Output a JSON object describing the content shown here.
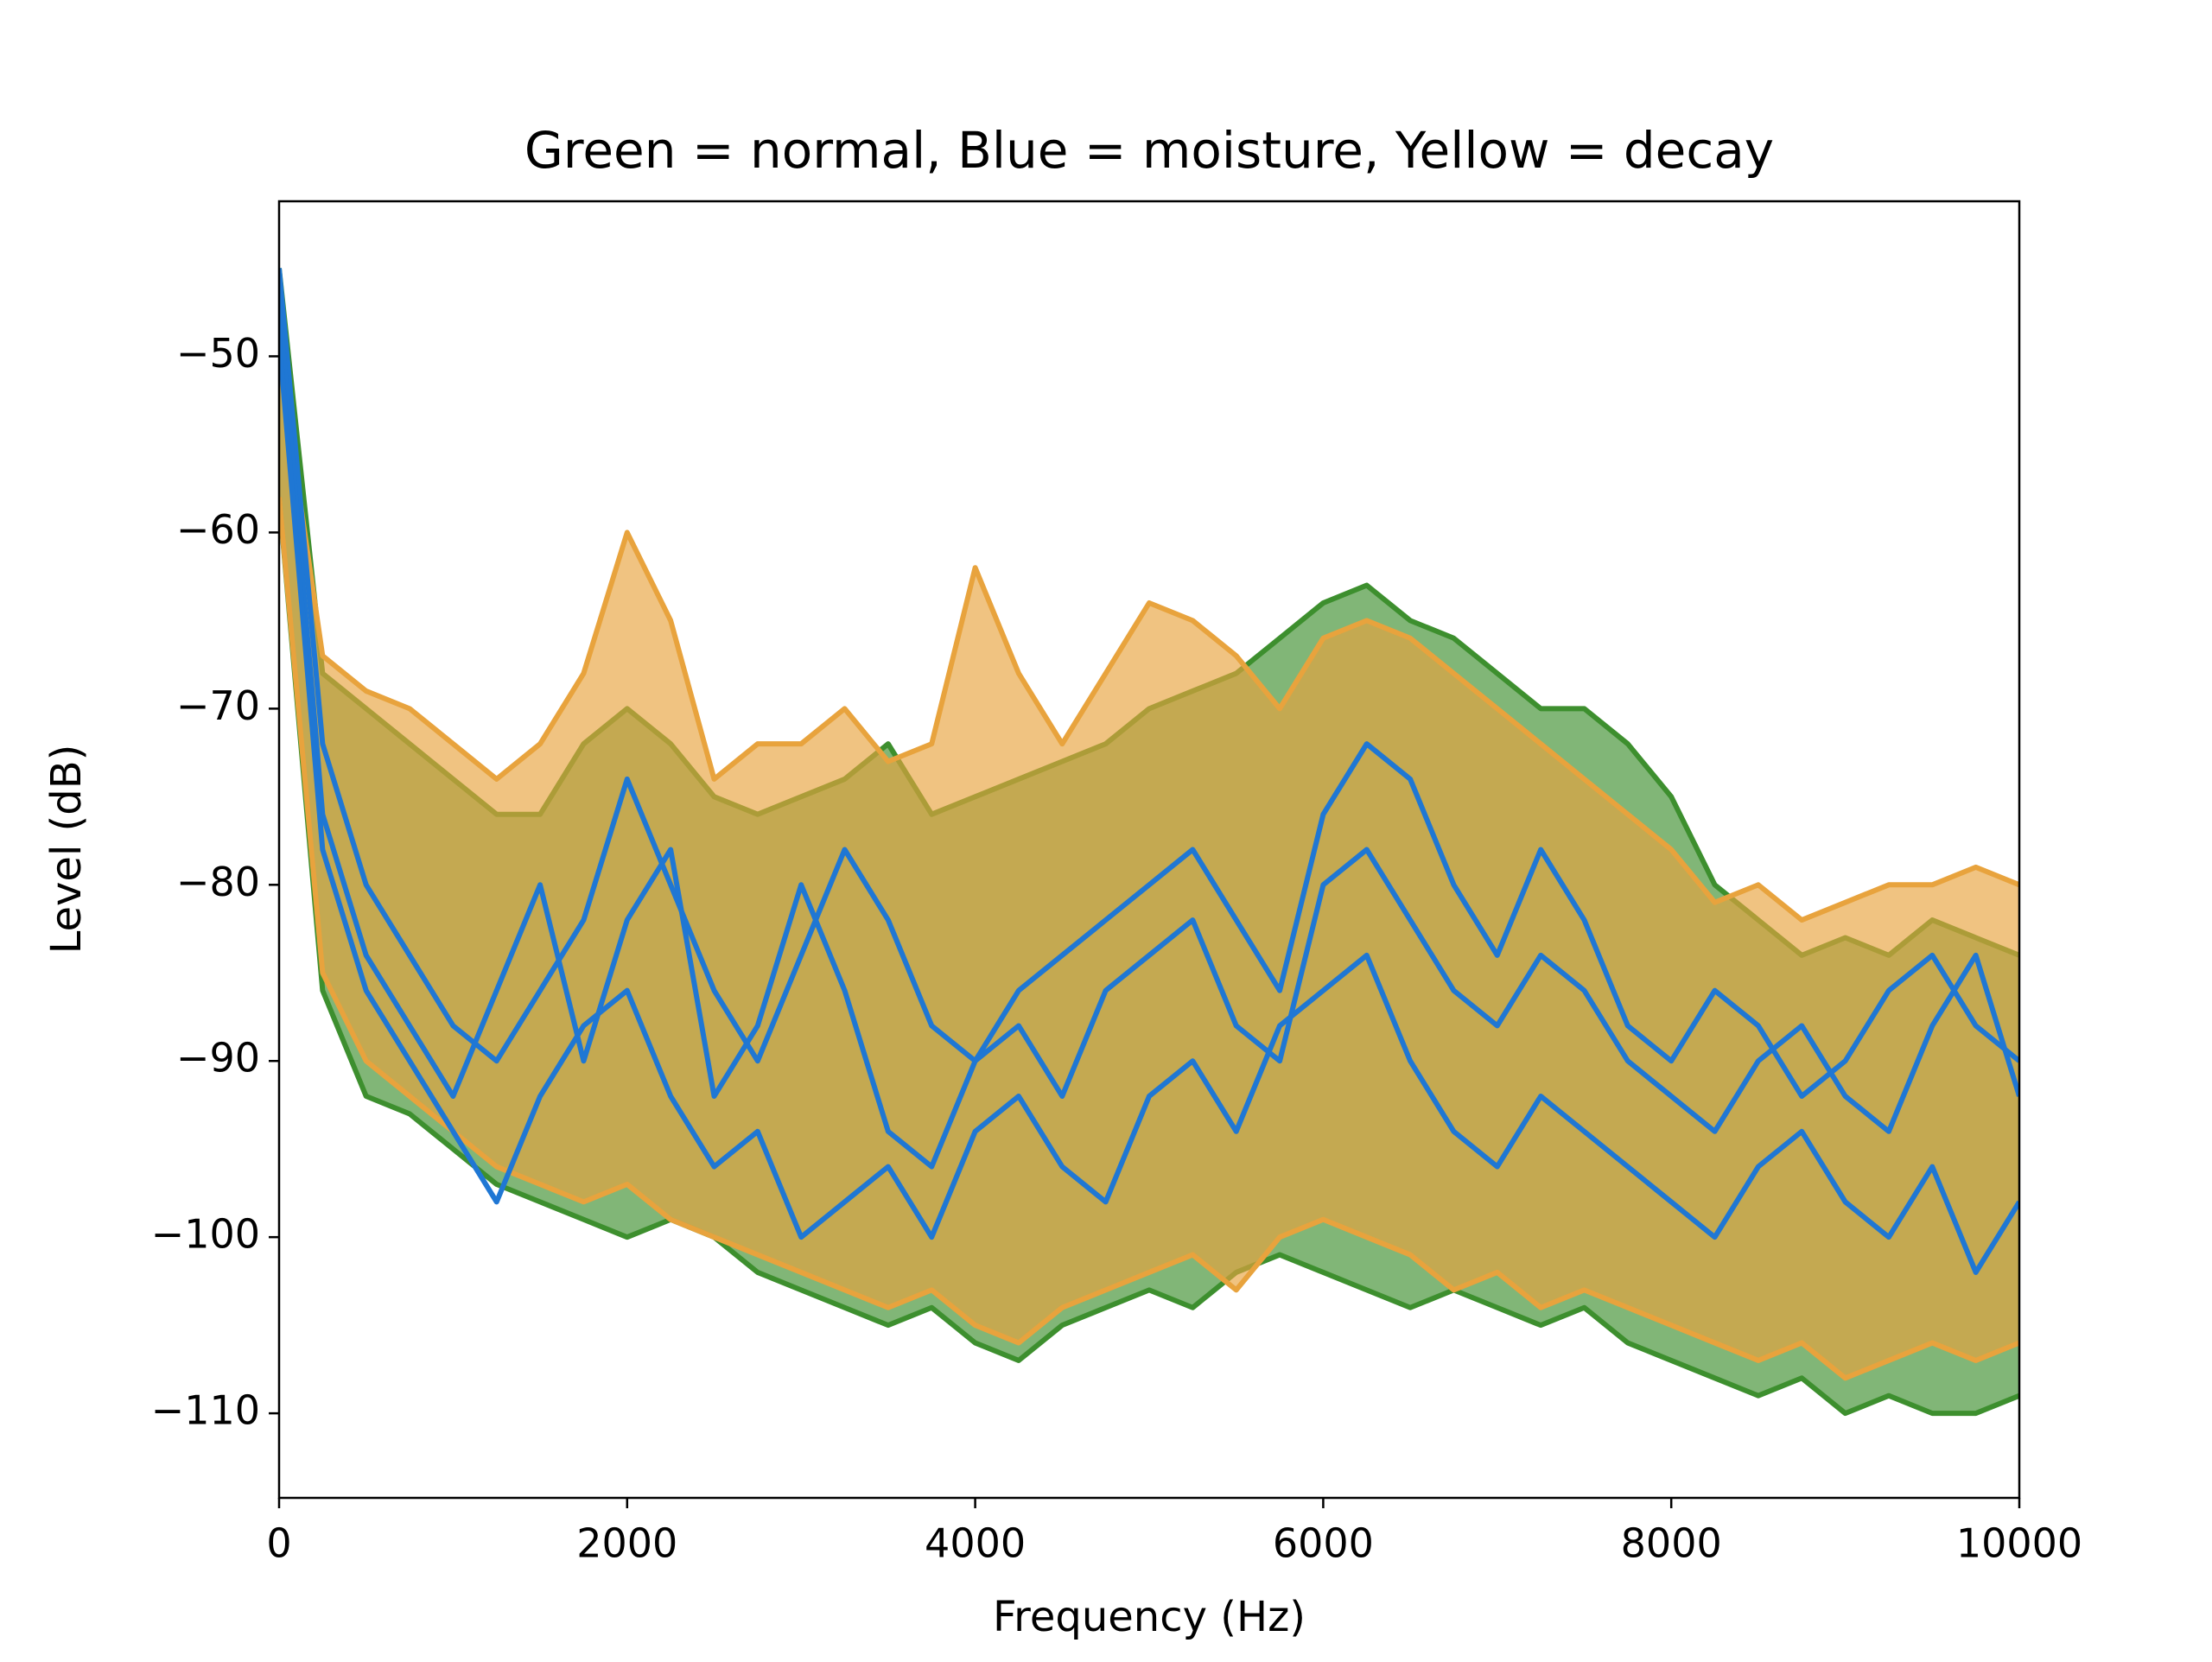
{
  "chart_data": {
    "type": "line",
    "title": "Green = normal, Blue = moisture, Yellow = decay",
    "x_label": "Frequency (Hz)",
    "y_label": "Level (dB)",
    "x": [
      0,
      250,
      500,
      750,
      1000,
      1250,
      1500,
      1750,
      2000,
      2250,
      2500,
      2750,
      3000,
      3250,
      3500,
      3750,
      4000,
      4250,
      4500,
      4750,
      5000,
      5250,
      5500,
      5750,
      6000,
      6250,
      6500,
      6750,
      7000,
      7250,
      7500,
      7750,
      8000,
      8250,
      8500,
      8750,
      9000,
      9250,
      9500,
      9750,
      10000
    ],
    "xlim": [
      0,
      10000
    ],
    "ylim": [
      -114.8,
      -41.2
    ],
    "xticks": [
      0,
      2000,
      4000,
      6000,
      8000,
      10000
    ],
    "yticks": [
      {
        "value": -50,
        "label": "−50"
      },
      {
        "value": -60,
        "label": "−60"
      },
      {
        "value": -70,
        "label": "−70"
      },
      {
        "value": -80,
        "label": "−80"
      },
      {
        "value": -90,
        "label": "−90"
      },
      {
        "value": -100,
        "label": "−100"
      },
      {
        "value": -110,
        "label": "−110"
      }
    ],
    "bands": [
      {
        "color": "#3d8f2e",
        "upper": [
          -45,
          -68,
          -70,
          -72,
          -74,
          -76,
          -76,
          -72,
          -70,
          -72,
          -75,
          -76,
          -75,
          -74,
          -72,
          -76,
          -75,
          -74,
          -73,
          -72,
          -70,
          -69,
          -68,
          -66,
          -64,
          -63,
          -65,
          -66,
          -68,
          -70,
          -70,
          -72,
          -75,
          -80,
          -82,
          -84,
          -83,
          -84,
          -82,
          -83,
          -84
        ],
        "lower": [
          -58,
          -86,
          -92,
          -93,
          -95,
          -97,
          -98,
          -99,
          -100,
          -99,
          -100,
          -102,
          -103,
          -104,
          -105,
          -104,
          -106,
          -107,
          -105,
          -104,
          -103,
          -104,
          -102,
          -101,
          -102,
          -103,
          -104,
          -103,
          -104,
          -105,
          -104,
          -106,
          -107,
          -108,
          -109,
          -108,
          -110,
          -109,
          -110,
          -110,
          -109
        ]
      },
      {
        "color": "#e8a33d",
        "upper": [
          -50,
          -67,
          -69,
          -70,
          -72,
          -74,
          -72,
          -68,
          -60,
          -65,
          -74,
          -72,
          -72,
          -70,
          -73,
          -72,
          -62,
          -68,
          -72,
          -68,
          -64,
          -65,
          -67,
          -70,
          -66,
          -65,
          -66,
          -68,
          -70,
          -72,
          -74,
          -76,
          -78,
          -81,
          -80,
          -82,
          -81,
          -80,
          -80,
          -79,
          -80
        ],
        "lower": [
          -58,
          -85,
          -90,
          -92,
          -94,
          -96,
          -97,
          -98,
          -97,
          -99,
          -100,
          -101,
          -102,
          -103,
          -104,
          -103,
          -105,
          -106,
          -104,
          -103,
          -102,
          -101,
          -103,
          -100,
          -99,
          -100,
          -101,
          -103,
          -102,
          -104,
          -103,
          -104,
          -105,
          -106,
          -107,
          -106,
          -108,
          -107,
          -106,
          -107,
          -106
        ]
      }
    ],
    "series": [
      {
        "color": "#1f77d4",
        "values": [
          -45,
          -72,
          -80,
          -84,
          -88,
          -90,
          -86,
          -82,
          -74,
          -80,
          -86,
          -90,
          -84,
          -78,
          -82,
          -88,
          -90,
          -86,
          -84,
          -82,
          -80,
          -78,
          -82,
          -86,
          -76,
          -72,
          -74,
          -80,
          -84,
          -78,
          -82,
          -88,
          -90,
          -86,
          -88,
          -92,
          -90,
          -86,
          -84,
          -88,
          -90
        ]
      },
      {
        "color": "#1f77d4",
        "values": [
          -47,
          -76,
          -84,
          -88,
          -92,
          -86,
          -80,
          -90,
          -82,
          -78,
          -92,
          -88,
          -80,
          -86,
          -94,
          -96,
          -90,
          -88,
          -92,
          -86,
          -84,
          -82,
          -88,
          -90,
          -80,
          -78,
          -82,
          -86,
          -88,
          -84,
          -86,
          -90,
          -92,
          -94,
          -90,
          -88,
          -92,
          -94,
          -88,
          -84,
          -92
        ]
      },
      {
        "color": "#1f77d4",
        "values": [
          -49,
          -78,
          -86,
          -90,
          -94,
          -98,
          -92,
          -88,
          -86,
          -92,
          -96,
          -94,
          -100,
          -98,
          -96,
          -100,
          -94,
          -92,
          -96,
          -98,
          -92,
          -90,
          -94,
          -88,
          -86,
          -84,
          -90,
          -94,
          -96,
          -92,
          -94,
          -96,
          -98,
          -100,
          -96,
          -94,
          -98,
          -100,
          -96,
          -102,
          -98
        ]
      }
    ]
  }
}
